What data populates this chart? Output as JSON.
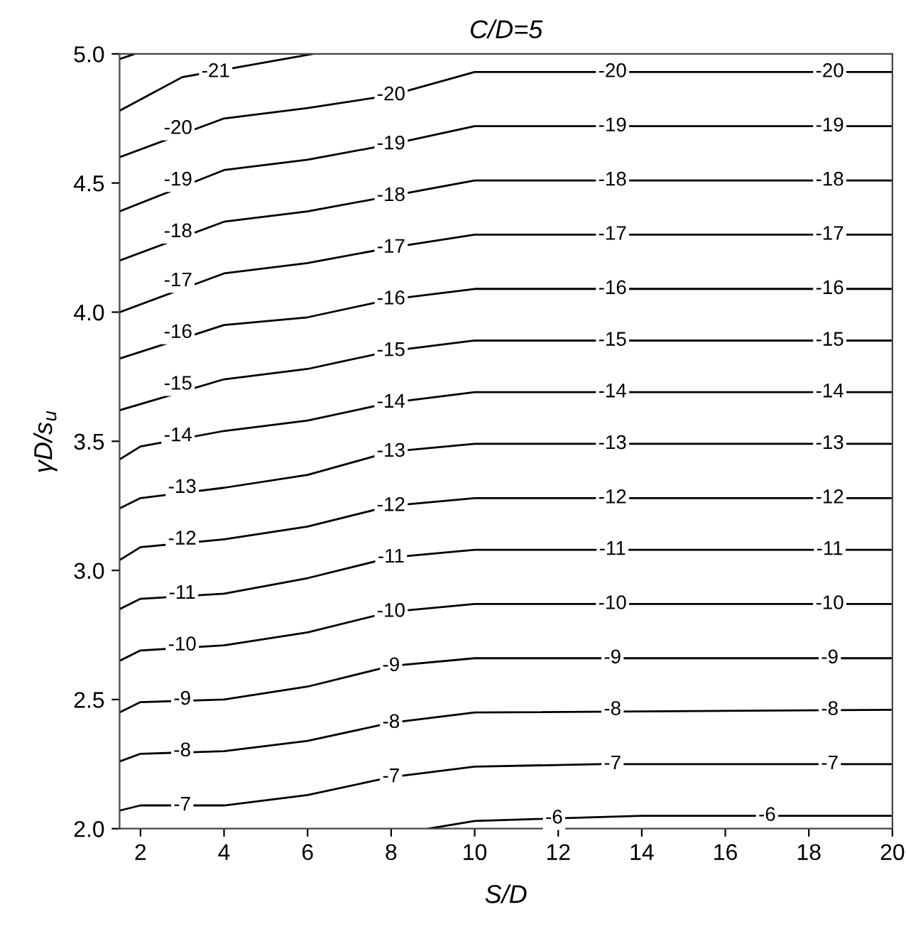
{
  "chart_data": {
    "type": "line",
    "title": "C/D=5",
    "xlabel": "S/D",
    "ylabel": "γD/s$_{u}$",
    "xlim": [
      1.5,
      20
    ],
    "ylim": [
      2,
      5
    ],
    "xticks": [
      2,
      4,
      6,
      8,
      10,
      12,
      14,
      16,
      18,
      20
    ],
    "yticks": [
      {
        "value": 2,
        "label": "2.0"
      },
      {
        "value": 2.5,
        "label": "2.5"
      },
      {
        "value": 3,
        "label": "3.0"
      },
      {
        "value": 3.5,
        "label": "3.5"
      },
      {
        "value": 4,
        "label": "4.0"
      },
      {
        "value": 4.5,
        "label": "4.5"
      },
      {
        "value": 5,
        "label": "5.0"
      }
    ],
    "grid": false,
    "marker": "none",
    "line_style": "solid",
    "series": [
      {
        "color": "#000000",
        "x": [
          1.5,
          1.87
        ],
        "values": [
          4.98,
          5.0
        ]
      },
      {
        "color": "#000000",
        "x": [
          1.5,
          3,
          6.13
        ],
        "values": [
          4.78,
          4.91,
          5.0
        ]
      },
      {
        "color": "#000000",
        "x": [
          1.5,
          4,
          6,
          8,
          10,
          20
        ],
        "values": [
          4.6,
          4.75,
          4.79,
          4.84,
          4.93,
          4.93
        ]
      },
      {
        "color": "#000000",
        "x": [
          1.5,
          4,
          6,
          8,
          10,
          20
        ],
        "values": [
          4.39,
          4.55,
          4.59,
          4.65,
          4.72,
          4.72
        ]
      },
      {
        "color": "#000000",
        "x": [
          1.5,
          4,
          6,
          8,
          10,
          20
        ],
        "values": [
          4.2,
          4.35,
          4.39,
          4.45,
          4.51,
          4.51
        ]
      },
      {
        "color": "#000000",
        "x": [
          1.5,
          4,
          6,
          8,
          10,
          20
        ],
        "values": [
          4.0,
          4.15,
          4.19,
          4.25,
          4.3,
          4.3
        ]
      },
      {
        "color": "#000000",
        "x": [
          1.5,
          4,
          6,
          8,
          10,
          20
        ],
        "values": [
          3.82,
          3.95,
          3.98,
          4.05,
          4.09,
          4.09
        ]
      },
      {
        "color": "#000000",
        "x": [
          1.5,
          4,
          6,
          8,
          10,
          20
        ],
        "values": [
          3.62,
          3.74,
          3.78,
          3.85,
          3.89,
          3.89
        ]
      },
      {
        "color": "#000000",
        "x": [
          1.5,
          2,
          4,
          6,
          8,
          10,
          20
        ],
        "values": [
          3.43,
          3.48,
          3.54,
          3.58,
          3.65,
          3.69,
          3.69
        ]
      },
      {
        "color": "#000000",
        "x": [
          1.5,
          2,
          4,
          6,
          8,
          10,
          20
        ],
        "values": [
          3.24,
          3.28,
          3.32,
          3.37,
          3.46,
          3.49,
          3.49
        ]
      },
      {
        "color": "#000000",
        "x": [
          1.5,
          2,
          4,
          6,
          8,
          10,
          20
        ],
        "values": [
          3.04,
          3.09,
          3.12,
          3.17,
          3.25,
          3.28,
          3.28
        ]
      },
      {
        "color": "#000000",
        "x": [
          1.5,
          2,
          4,
          6,
          8,
          10,
          20
        ],
        "values": [
          2.85,
          2.89,
          2.91,
          2.97,
          3.05,
          3.08,
          3.08
        ]
      },
      {
        "color": "#000000",
        "x": [
          1.5,
          2,
          4,
          6,
          8,
          10,
          20
        ],
        "values": [
          2.65,
          2.69,
          2.71,
          2.76,
          2.84,
          2.87,
          2.87
        ]
      },
      {
        "color": "#000000",
        "x": [
          1.5,
          2,
          4,
          6,
          8,
          10,
          20
        ],
        "values": [
          2.45,
          2.49,
          2.5,
          2.55,
          2.63,
          2.66,
          2.66
        ]
      },
      {
        "color": "#000000",
        "x": [
          1.5,
          2,
          4,
          6,
          8,
          10,
          20
        ],
        "values": [
          2.26,
          2.29,
          2.3,
          2.34,
          2.41,
          2.45,
          2.46
        ]
      },
      {
        "color": "#000000",
        "x": [
          1.5,
          2,
          4,
          6,
          8,
          10,
          13,
          20
        ],
        "values": [
          2.07,
          2.09,
          2.09,
          2.13,
          2.2,
          2.24,
          2.25,
          2.25
        ]
      },
      {
        "color": "#000000",
        "x": [
          8.9,
          10,
          14,
          20
        ],
        "values": [
          2.0,
          2.03,
          2.05,
          2.05
        ]
      }
    ],
    "annotations": [
      {
        "text": "-21",
        "x": 3.8,
        "y": 4.93
      },
      {
        "text": "-20",
        "x": 2.9,
        "y": 4.71
      },
      {
        "text": "-20",
        "x": 8,
        "y": 4.84
      },
      {
        "text": "-20",
        "x": 13.3,
        "y": 4.93
      },
      {
        "text": "-20",
        "x": 18.5,
        "y": 4.93
      },
      {
        "text": "-19",
        "x": 2.9,
        "y": 4.51
      },
      {
        "text": "-19",
        "x": 8,
        "y": 4.65
      },
      {
        "text": "-19",
        "x": 13.3,
        "y": 4.72
      },
      {
        "text": "-19",
        "x": 18.5,
        "y": 4.72
      },
      {
        "text": "-18",
        "x": 2.9,
        "y": 4.31
      },
      {
        "text": "-18",
        "x": 8,
        "y": 4.45
      },
      {
        "text": "-18",
        "x": 13.3,
        "y": 4.51
      },
      {
        "text": "-18",
        "x": 18.5,
        "y": 4.51
      },
      {
        "text": "-17",
        "x": 2.9,
        "y": 4.12
      },
      {
        "text": "-17",
        "x": 8,
        "y": 4.25
      },
      {
        "text": "-17",
        "x": 13.3,
        "y": 4.3
      },
      {
        "text": "-17",
        "x": 18.5,
        "y": 4.3
      },
      {
        "text": "-16",
        "x": 2.9,
        "y": 3.92
      },
      {
        "text": "-16",
        "x": 8,
        "y": 4.05
      },
      {
        "text": "-16",
        "x": 13.3,
        "y": 4.09
      },
      {
        "text": "-16",
        "x": 18.5,
        "y": 4.09
      },
      {
        "text": "-15",
        "x": 2.9,
        "y": 3.72
      },
      {
        "text": "-15",
        "x": 8,
        "y": 3.85
      },
      {
        "text": "-15",
        "x": 13.3,
        "y": 3.89
      },
      {
        "text": "-15",
        "x": 18.5,
        "y": 3.89
      },
      {
        "text": "-14",
        "x": 2.9,
        "y": 3.52
      },
      {
        "text": "-14",
        "x": 8,
        "y": 3.65
      },
      {
        "text": "-14",
        "x": 13.3,
        "y": 3.69
      },
      {
        "text": "-14",
        "x": 18.5,
        "y": 3.69
      },
      {
        "text": "-13",
        "x": 3,
        "y": 3.32
      },
      {
        "text": "-13",
        "x": 8,
        "y": 3.46
      },
      {
        "text": "-13",
        "x": 13.3,
        "y": 3.49
      },
      {
        "text": "-13",
        "x": 18.5,
        "y": 3.49
      },
      {
        "text": "-12",
        "x": 3,
        "y": 3.12
      },
      {
        "text": "-12",
        "x": 8,
        "y": 3.25
      },
      {
        "text": "-12",
        "x": 13.3,
        "y": 3.28
      },
      {
        "text": "-12",
        "x": 18.5,
        "y": 3.28
      },
      {
        "text": "-11",
        "x": 3,
        "y": 2.91
      },
      {
        "text": "-11",
        "x": 8,
        "y": 3.05
      },
      {
        "text": "-11",
        "x": 13.3,
        "y": 3.08
      },
      {
        "text": "-11",
        "x": 18.5,
        "y": 3.08
      },
      {
        "text": "-10",
        "x": 3,
        "y": 2.71
      },
      {
        "text": "-10",
        "x": 8,
        "y": 2.84
      },
      {
        "text": "-10",
        "x": 13.3,
        "y": 2.87
      },
      {
        "text": "-10",
        "x": 18.5,
        "y": 2.87
      },
      {
        "text": "-9",
        "x": 3,
        "y": 2.5
      },
      {
        "text": "-9",
        "x": 8,
        "y": 2.63
      },
      {
        "text": "-9",
        "x": 13.3,
        "y": 2.66
      },
      {
        "text": "-9",
        "x": 18.5,
        "y": 2.66
      },
      {
        "text": "-8",
        "x": 3,
        "y": 2.3
      },
      {
        "text": "-8",
        "x": 8,
        "y": 2.41
      },
      {
        "text": "-8",
        "x": 13.3,
        "y": 2.46
      },
      {
        "text": "-8",
        "x": 18.5,
        "y": 2.46
      },
      {
        "text": "-7",
        "x": 3,
        "y": 2.09
      },
      {
        "text": "-7",
        "x": 8,
        "y": 2.2
      },
      {
        "text": "-7",
        "x": 13.3,
        "y": 2.25
      },
      {
        "text": "-7",
        "x": 18.5,
        "y": 2.25
      },
      {
        "text": "-6",
        "x": 11.9,
        "y": 2.04
      },
      {
        "text": "-6",
        "x": 17,
        "y": 2.05
      }
    ]
  }
}
